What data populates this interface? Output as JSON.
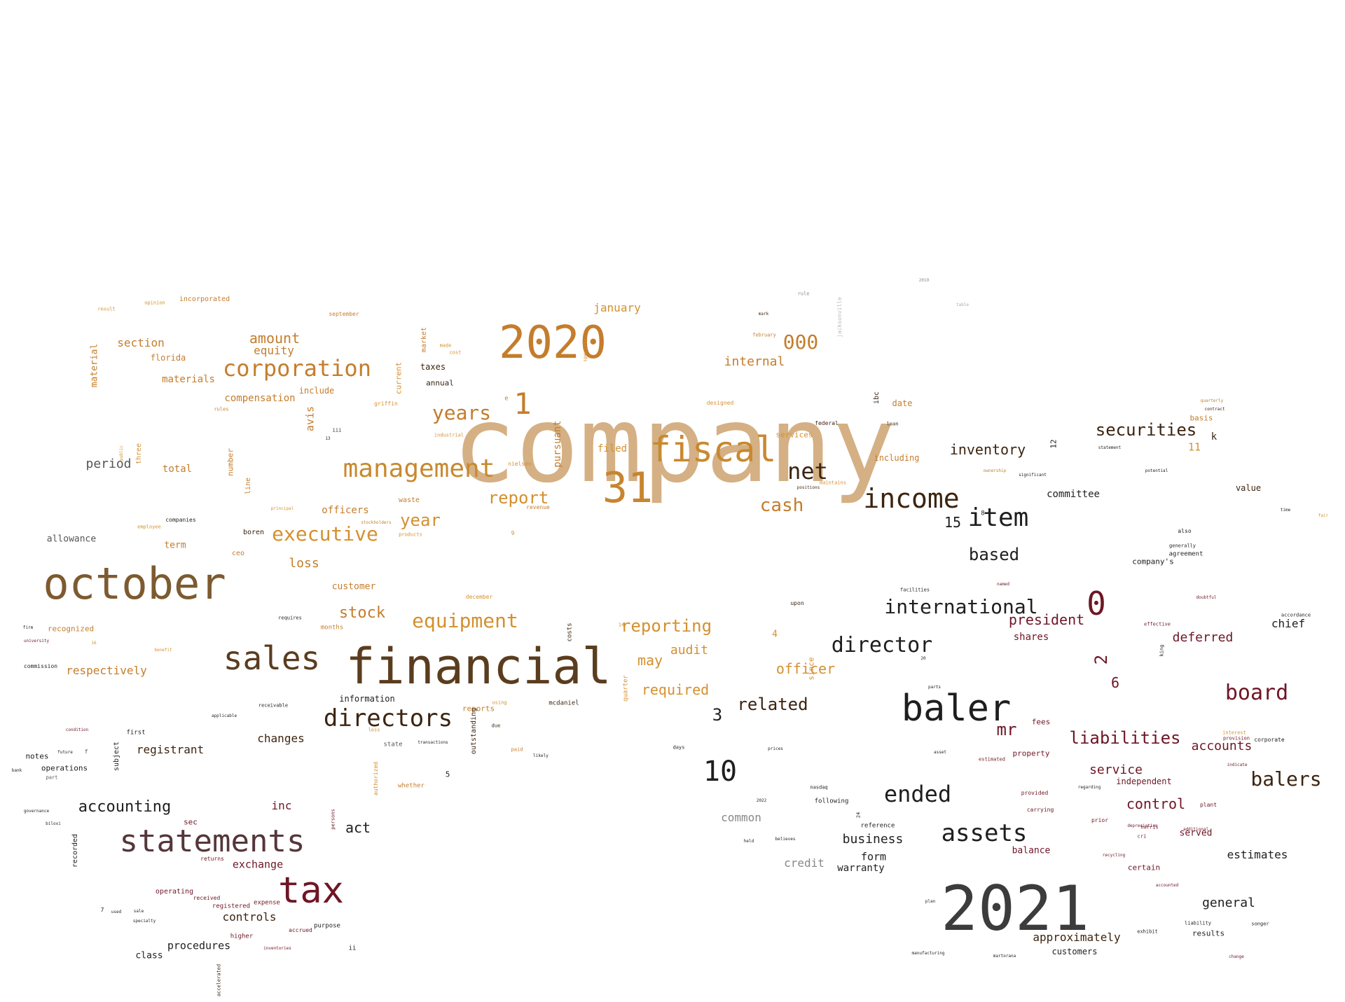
{
  "words": [
    {
      "text": "company",
      "color": "#d4b084"
    },
    {
      "text": "financial",
      "color": "#5a3d1e"
    },
    {
      "text": "october",
      "color": "#7d5a30"
    },
    {
      "text": "2020",
      "color": "#c47d2c"
    },
    {
      "text": "2021",
      "color": "#3c3c3c"
    },
    {
      "text": "31",
      "color": "#c78530"
    },
    {
      "text": "fiscal",
      "color": "#c8892f"
    },
    {
      "text": "management",
      "color": "#c8892f"
    },
    {
      "text": "statements",
      "color": "#55363a"
    },
    {
      "text": "tax",
      "color": "#6e1625"
    },
    {
      "text": "sales",
      "color": "#5a3d1e"
    },
    {
      "text": "baler",
      "color": "#1e1e1e"
    },
    {
      "text": "income",
      "color": "#3c2410"
    },
    {
      "text": "item",
      "color": "#1e1e1e"
    },
    {
      "text": "corporation",
      "color": "#c47d2c"
    },
    {
      "text": "directors",
      "color": "#3c2410"
    },
    {
      "text": "director",
      "color": "#1e1e1e"
    },
    {
      "text": "executive",
      "color": "#d4902f"
    },
    {
      "text": "equipment",
      "color": "#d4902f"
    },
    {
      "text": "assets",
      "color": "#1e1e1e"
    },
    {
      "text": "ended",
      "color": "#1e1e1e"
    },
    {
      "text": "international",
      "color": "#1e1e1e"
    },
    {
      "text": "years",
      "color": "#c47d2c"
    },
    {
      "text": "net",
      "color": "#3c2410"
    },
    {
      "text": "board",
      "color": "#6e1625"
    },
    {
      "text": "balers",
      "color": "#3c2410"
    },
    {
      "text": "0",
      "color": "#6e1625"
    },
    {
      "text": "1",
      "color": "#c47d2c"
    },
    {
      "text": "10",
      "color": "#1e1e1e"
    },
    {
      "text": "000",
      "color": "#c47d2c"
    },
    {
      "text": "cash",
      "color": "#c47d2c"
    },
    {
      "text": "reporting",
      "color": "#d4902f"
    },
    {
      "text": "report",
      "color": "#d4902f"
    },
    {
      "text": "securities",
      "color": "#3c2410"
    },
    {
      "text": "liabilities",
      "color": "#6e1625"
    },
    {
      "text": "year",
      "color": "#d4902f"
    },
    {
      "text": "stock",
      "color": "#c47d2c"
    },
    {
      "text": "related",
      "color": "#3c2410"
    },
    {
      "text": "based",
      "color": "#1e1e1e"
    },
    {
      "text": "president",
      "color": "#6e1625"
    },
    {
      "text": "inventory",
      "color": "#3c2410"
    },
    {
      "text": "accounting",
      "color": "#1e1e1e"
    },
    {
      "text": "control",
      "color": "#6e1625"
    },
    {
      "text": "mr",
      "color": "#6e1625"
    },
    {
      "text": "amount",
      "color": "#c47d2c"
    },
    {
      "text": "officer",
      "color": "#d4902f"
    },
    {
      "text": "required",
      "color": "#d4902f"
    },
    {
      "text": "deferred",
      "color": "#6e1625"
    },
    {
      "text": "accounts",
      "color": "#6e1625"
    },
    {
      "text": "loss",
      "color": "#c47d2c"
    },
    {
      "text": "internal",
      "color": "#c47d2c"
    },
    {
      "text": "may",
      "color": "#d4902f"
    },
    {
      "text": "audit",
      "color": "#d4902f"
    },
    {
      "text": "january",
      "color": "#d4902f"
    },
    {
      "text": "section",
      "color": "#c47d2c"
    },
    {
      "text": "equity",
      "color": "#c47d2c"
    },
    {
      "text": "period",
      "color": "#555555"
    },
    {
      "text": "general",
      "color": "#1e1e1e"
    },
    {
      "text": "chief",
      "color": "#1e1e1e"
    },
    {
      "text": "service",
      "color": "#6e1625"
    },
    {
      "text": "business",
      "color": "#1e1e1e"
    },
    {
      "text": "act",
      "color": "#1e1e1e"
    },
    {
      "text": "changes",
      "color": "#3c2410"
    },
    {
      "text": "controls",
      "color": "#3c2410"
    },
    {
      "text": "estimates",
      "color": "#1e1e1e"
    },
    {
      "text": "approximately",
      "color": "#3c2410"
    },
    {
      "text": "respectively",
      "color": "#c47d2c"
    },
    {
      "text": "committee",
      "color": "#1e1e1e"
    },
    {
      "text": "registrant",
      "color": "#3c2410"
    },
    {
      "text": "procedures",
      "color": "#1e1e1e"
    },
    {
      "text": "exchange",
      "color": "#6e1625"
    },
    {
      "text": "inc",
      "color": "#6e1625"
    },
    {
      "text": "common",
      "color": "#888888"
    },
    {
      "text": "credit",
      "color": "#888888"
    },
    {
      "text": "form",
      "color": "#1e1e1e"
    },
    {
      "text": "warranty",
      "color": "#1e1e1e"
    },
    {
      "text": "total",
      "color": "#c47d2c"
    },
    {
      "text": "shares",
      "color": "#6e1625"
    },
    {
      "text": "15",
      "color": "#1e1e1e"
    },
    {
      "text": "3",
      "color": "#1e1e1e"
    },
    {
      "text": "2",
      "color": "#6e1625"
    },
    {
      "text": "6",
      "color": "#6e1625"
    },
    {
      "text": "compensation",
      "color": "#c47d2c"
    },
    {
      "text": "materials",
      "color": "#c47d2c"
    },
    {
      "text": "allowance",
      "color": "#555555"
    },
    {
      "text": "officers",
      "color": "#c47d2c"
    },
    {
      "text": "customer",
      "color": "#c47d2c"
    },
    {
      "text": "filed",
      "color": "#d4902f"
    },
    {
      "text": "pursuant",
      "color": "#c47d2c"
    },
    {
      "text": "avis",
      "color": "#c47d2c"
    },
    {
      "text": "term",
      "color": "#c47d2c"
    },
    {
      "text": "served",
      "color": "#6e1625"
    },
    {
      "text": "balance",
      "color": "#6e1625"
    },
    {
      "text": "value",
      "color": "#3c2410"
    },
    {
      "text": "date",
      "color": "#c47d2c"
    },
    {
      "text": "including",
      "color": "#c47d2c"
    },
    {
      "text": "information",
      "color": "#1e1e1e"
    },
    {
      "text": "class",
      "color": "#1e1e1e"
    },
    {
      "text": "customers",
      "color": "#1e1e1e"
    },
    {
      "text": "results",
      "color": "#1e1e1e"
    },
    {
      "text": "independent",
      "color": "#6e1625"
    },
    {
      "text": "certain",
      "color": "#6e1625"
    },
    {
      "text": "fees",
      "color": "#6e1625"
    },
    {
      "text": "property",
      "color": "#6e1625"
    },
    {
      "text": "recognized",
      "color": "#c47d2c"
    },
    {
      "text": "include",
      "color": "#c47d2c"
    },
    {
      "text": "florida",
      "color": "#c47d2c"
    },
    {
      "text": "incorporated",
      "color": "#c47d2c"
    },
    {
      "text": "taxes",
      "color": "#3c2410"
    },
    {
      "text": "annual",
      "color": "#3c2410"
    },
    {
      "text": "material",
      "color": "#c47d2c"
    },
    {
      "text": "notes",
      "color": "#1e1e1e"
    },
    {
      "text": "operations",
      "color": "#1e1e1e"
    },
    {
      "text": "operating",
      "color": "#6e1625"
    },
    {
      "text": "sec",
      "color": "#6e1625"
    },
    {
      "text": "reference",
      "color": "#1e1e1e"
    },
    {
      "text": "following",
      "color": "#1e1e1e"
    },
    {
      "text": "company's",
      "color": "#1e1e1e"
    },
    {
      "text": "agreement",
      "color": "#1e1e1e"
    },
    {
      "text": "waste",
      "color": "#c47d2c"
    },
    {
      "text": "reports",
      "color": "#c47d2c"
    },
    {
      "text": "state",
      "color": "#555555"
    },
    {
      "text": "first",
      "color": "#1e1e1e"
    },
    {
      "text": "ceo",
      "color": "#c47d2c"
    },
    {
      "text": "boren",
      "color": "#3c2410"
    },
    {
      "text": "months",
      "color": "#c47d2c"
    },
    {
      "text": "december",
      "color": "#d4902f"
    },
    {
      "text": "market",
      "color": "#c47d2c"
    },
    {
      "text": "current",
      "color": "#d4902f"
    },
    {
      "text": "number",
      "color": "#c47d2c"
    },
    {
      "text": "line",
      "color": "#c47d2c"
    },
    {
      "text": "k",
      "color": "#3c2410"
    },
    {
      "text": "11",
      "color": "#d4902f"
    },
    {
      "text": "basis",
      "color": "#c47d2c"
    },
    {
      "text": "4",
      "color": "#d4902f"
    },
    {
      "text": "5",
      "color": "#1e1e1e"
    },
    {
      "text": "12",
      "color": "#1e1e1e"
    },
    {
      "text": "8",
      "color": "#1e1e1e"
    },
    {
      "text": "purpose",
      "color": "#1e1e1e"
    },
    {
      "text": "recorded",
      "color": "#1e1e1e"
    },
    {
      "text": "subject",
      "color": "#1e1e1e"
    },
    {
      "text": "accrued",
      "color": "#6e1625"
    },
    {
      "text": "registered",
      "color": "#6e1625"
    },
    {
      "text": "expense",
      "color": "#6e1625"
    },
    {
      "text": "received",
      "color": "#6e1625"
    },
    {
      "text": "higher",
      "color": "#6e1625"
    },
    {
      "text": "returns",
      "color": "#6e1625"
    },
    {
      "text": "plant",
      "color": "#6e1625"
    },
    {
      "text": "prior",
      "color": "#6e1625"
    },
    {
      "text": "carrying",
      "color": "#6e1625"
    },
    {
      "text": "provided",
      "color": "#6e1625"
    },
    {
      "text": "estimated",
      "color": "#6e1625"
    },
    {
      "text": "mcdaniel",
      "color": "#3c2410"
    },
    {
      "text": "outstanding",
      "color": "#3c2410"
    },
    {
      "text": "costs",
      "color": "#3c2410"
    },
    {
      "text": "since",
      "color": "#d4902f"
    },
    {
      "text": "quarter",
      "color": "#d4902f"
    },
    {
      "text": "upon",
      "color": "#3c2410"
    },
    {
      "text": "services",
      "color": "#d4902f"
    },
    {
      "text": "federal",
      "color": "#3c2410"
    },
    {
      "text": "ibc",
      "color": "#3c2410"
    },
    {
      "text": "facilities",
      "color": "#1e1e1e"
    },
    {
      "text": "also",
      "color": "#1e1e1e"
    },
    {
      "text": "generally",
      "color": "#1e1e1e"
    },
    {
      "text": "accordance",
      "color": "#1e1e1e"
    },
    {
      "text": "effective",
      "color": "#6e1625"
    },
    {
      "text": "provision",
      "color": "#6e1625"
    },
    {
      "text": "corporate",
      "color": "#1e1e1e"
    },
    {
      "text": "exhibit",
      "color": "#1e1e1e"
    },
    {
      "text": "liability",
      "color": "#1e1e1e"
    },
    {
      "text": "songer",
      "color": "#1e1e1e"
    },
    {
      "text": "martorana",
      "color": "#1e1e1e"
    },
    {
      "text": "manufacturing",
      "color": "#1e1e1e"
    },
    {
      "text": "plan",
      "color": "#1e1e1e"
    },
    {
      "text": "prices",
      "color": "#1e1e1e"
    },
    {
      "text": "days",
      "color": "#1e1e1e"
    },
    {
      "text": "nasdaq",
      "color": "#1e1e1e"
    },
    {
      "text": "believes",
      "color": "#1e1e1e"
    },
    {
      "text": "held",
      "color": "#1e1e1e"
    },
    {
      "text": "companies",
      "color": "#1e1e1e"
    },
    {
      "text": "employee",
      "color": "#d4902f"
    },
    {
      "text": "griffin",
      "color": "#d4902f"
    },
    {
      "text": "rules",
      "color": "#c47d2c"
    },
    {
      "text": "nielsen",
      "color": "#d4902f"
    },
    {
      "text": "revenue",
      "color": "#c47d2c"
    },
    {
      "text": "products",
      "color": "#d4902f"
    },
    {
      "text": "principal",
      "color": "#d4902f"
    },
    {
      "text": "stockholders",
      "color": "#c47d2c"
    },
    {
      "text": "authorized",
      "color": "#d4902f"
    },
    {
      "text": "paid",
      "color": "#c47d2c"
    },
    {
      "text": "due",
      "color": "#3c2410"
    },
    {
      "text": "using",
      "color": "#d4902f"
    },
    {
      "text": "less",
      "color": "#d4902f"
    },
    {
      "text": "whether",
      "color": "#c47d2c"
    },
    {
      "text": "part",
      "color": "#555555"
    },
    {
      "text": "future",
      "color": "#1e1e1e"
    },
    {
      "text": "commission",
      "color": "#1e1e1e"
    },
    {
      "text": "receivable",
      "color": "#1e1e1e"
    },
    {
      "text": "applicable",
      "color": "#1e1e1e"
    },
    {
      "text": "requires",
      "color": "#1e1e1e"
    },
    {
      "text": "benefit",
      "color": "#d4902f"
    },
    {
      "text": "designed",
      "color": "#d4902f"
    },
    {
      "text": "february",
      "color": "#c47d2c"
    },
    {
      "text": "september",
      "color": "#c47d2c"
    },
    {
      "text": "result",
      "color": "#d4902f"
    },
    {
      "text": "opinion",
      "color": "#d4902f"
    },
    {
      "text": "made",
      "color": "#d4902f"
    },
    {
      "text": "cost",
      "color": "#d4902f"
    },
    {
      "text": "industrial",
      "color": "#d4902f"
    },
    {
      "text": "loan",
      "color": "#3c2410"
    },
    {
      "text": "mark",
      "color": "#3c2410"
    },
    {
      "text": "maintains",
      "color": "#d4902f"
    },
    {
      "text": "positions",
      "color": "#3c2410"
    },
    {
      "text": "contract",
      "color": "#3c2410"
    },
    {
      "text": "quarterly",
      "color": "#c47d2c"
    },
    {
      "text": "ownership",
      "color": "#c47d2c"
    },
    {
      "text": "significant",
      "color": "#1e1e1e"
    },
    {
      "text": "potential",
      "color": "#1e1e1e"
    },
    {
      "text": "statement",
      "color": "#1e1e1e"
    },
    {
      "text": "king",
      "color": "#1e1e1e"
    },
    {
      "text": "doubtful",
      "color": "#6e1625"
    },
    {
      "text": "named",
      "color": "#6e1625"
    },
    {
      "text": "asset",
      "color": "#1e1e1e"
    },
    {
      "text": "regarding",
      "color": "#1e1e1e"
    },
    {
      "text": "time",
      "color": "#1e1e1e"
    },
    {
      "text": "fair",
      "color": "#d4902f"
    },
    {
      "text": "specific",
      "color": "#d4902f"
    },
    {
      "text": "interest",
      "color": "#d4902f"
    },
    {
      "text": "indicate",
      "color": "#6e1625"
    },
    {
      "text": "accounted",
      "color": "#6e1625"
    },
    {
      "text": "recycling",
      "color": "#6e1625"
    },
    {
      "text": "depreciation",
      "color": "#6e1625"
    },
    {
      "text": "cri",
      "color": "#6e1625"
    },
    {
      "text": "harris",
      "color": "#6e1625"
    },
    {
      "text": "additional",
      "color": "#6e1625"
    },
    {
      "text": "change",
      "color": "#6e1625"
    },
    {
      "text": "likely",
      "color": "#1e1e1e"
    },
    {
      "text": "transactions",
      "color": "#1e1e1e"
    },
    {
      "text": "parts",
      "color": "#1e1e1e"
    },
    {
      "text": "three",
      "color": "#d4902f"
    },
    {
      "text": "public",
      "color": "#d4902f"
    },
    {
      "text": "firm",
      "color": "#1e1e1e"
    },
    {
      "text": "bank",
      "color": "#1e1e1e"
    },
    {
      "text": "condition",
      "color": "#6e1625"
    },
    {
      "text": "university",
      "color": "#6e1625"
    },
    {
      "text": "governance",
      "color": "#1e1e1e"
    },
    {
      "text": "biloxi",
      "color": "#1e1e1e"
    },
    {
      "text": "used",
      "color": "#1e1e1e"
    },
    {
      "text": "sale",
      "color": "#1e1e1e"
    },
    {
      "text": "specialty",
      "color": "#1e1e1e"
    },
    {
      "text": "inventories",
      "color": "#6e1625"
    },
    {
      "text": "persons",
      "color": "#6e1625"
    },
    {
      "text": "accelerated",
      "color": "#3c2410"
    },
    {
      "text": "jacksonville",
      "color": "#bbbbbb"
    },
    {
      "text": "iii",
      "color": "#1e1e1e"
    },
    {
      "text": "ii",
      "color": "#1e1e1e"
    },
    {
      "text": "rule",
      "color": "#888888"
    },
    {
      "text": "table",
      "color": "#aaaaaa"
    },
    {
      "text": "2019",
      "color": "#888888"
    },
    {
      "text": "2022",
      "color": "#1e1e1e"
    },
    {
      "text": "24",
      "color": "#1e1e1e"
    },
    {
      "text": "20",
      "color": "#1e1e1e"
    },
    {
      "text": "13",
      "color": "#1e1e1e"
    },
    {
      "text": "14",
      "color": "#d4902f"
    },
    {
      "text": "16",
      "color": "#d4902f"
    },
    {
      "text": "9",
      "color": "#d4902f"
    },
    {
      "text": "7",
      "color": "#1e1e1e"
    },
    {
      "text": "f",
      "color": "#555555"
    },
    {
      "text": "e",
      "color": "#c47d2c"
    }
  ]
}
